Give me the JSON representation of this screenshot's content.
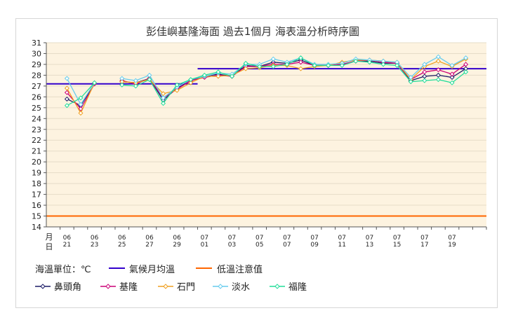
{
  "chart_data": {
    "type": "line",
    "title": "彭佳嶼基隆海面 過去1個月 海表溫分析時序圖",
    "xlabel": "月日",
    "ylabel": "",
    "ylim": [
      14,
      31
    ],
    "yticks": [
      14,
      15,
      16,
      17,
      18,
      19,
      20,
      21,
      22,
      23,
      24,
      25,
      26,
      27,
      28,
      29,
      30,
      31
    ],
    "grid": true,
    "plot_background": "#fdf3e0",
    "x_dates": [
      "06/20",
      "06/21",
      "06/22",
      "06/23",
      "06/24",
      "06/25",
      "06/26",
      "06/27",
      "06/28",
      "06/29",
      "06/30",
      "07/01",
      "07/02",
      "07/03",
      "07/04",
      "07/05",
      "07/06",
      "07/07",
      "07/08",
      "07/09",
      "07/10",
      "07/11",
      "07/12",
      "07/13",
      "07/14",
      "07/15",
      "07/16",
      "07/17",
      "07/18",
      "07/19",
      "07/20",
      "07/21"
    ],
    "x_tick_labels": [
      {
        "date": "06/21",
        "month": "06",
        "day": "21"
      },
      {
        "date": "06/23",
        "month": "06",
        "day": "23"
      },
      {
        "date": "06/25",
        "month": "06",
        "day": "25"
      },
      {
        "date": "06/27",
        "month": "06",
        "day": "27"
      },
      {
        "date": "06/29",
        "month": "06",
        "day": "29"
      },
      {
        "date": "07/01",
        "month": "07",
        "day": "01"
      },
      {
        "date": "07/03",
        "month": "07",
        "day": "03"
      },
      {
        "date": "07/05",
        "month": "07",
        "day": "05"
      },
      {
        "date": "07/07",
        "month": "07",
        "day": "07"
      },
      {
        "date": "07/09",
        "month": "07",
        "day": "09"
      },
      {
        "date": "07/11",
        "month": "07",
        "day": "11"
      },
      {
        "date": "07/13",
        "month": "07",
        "day": "13"
      },
      {
        "date": "07/15",
        "month": "07",
        "day": "15"
      },
      {
        "date": "07/17",
        "month": "07",
        "day": "17"
      },
      {
        "date": "07/19",
        "month": "07",
        "day": "19"
      }
    ],
    "x_axis_caption_top": "月",
    "x_axis_caption_bottom": "日",
    "unit_label": "海溫單位：℃",
    "reference_lines": [
      {
        "name": "氣候月均溫",
        "color": "#3300cc",
        "segments": [
          {
            "x_start": "06/20",
            "x_end": "06/30",
            "y": 27.2
          },
          {
            "x_start": "07/01",
            "x_end": "07/21",
            "y": 28.6
          }
        ]
      },
      {
        "name": "低溫注意值",
        "color": "#ff6600",
        "y": 15.0
      }
    ],
    "series": [
      {
        "name": "鼻頭角",
        "color": "#1a1a66",
        "points": [
          [
            "06/21",
            25.8
          ],
          [
            "06/22",
            25.2
          ],
          [
            "06/23",
            27.2
          ],
          [
            "06/25",
            27.4
          ],
          [
            "06/26",
            27.3
          ],
          [
            "06/27",
            27.7
          ],
          [
            "06/28",
            25.7
          ],
          [
            "06/29",
            26.8
          ],
          [
            "06/30",
            27.5
          ],
          [
            "07/01",
            27.9
          ],
          [
            "07/02",
            28.1
          ],
          [
            "07/03",
            27.9
          ],
          [
            "07/04",
            28.9
          ],
          [
            "07/05",
            28.8
          ],
          [
            "07/06",
            29.2
          ],
          [
            "07/07",
            29.1
          ],
          [
            "07/08",
            29.4
          ],
          [
            "07/09",
            28.9
          ],
          [
            "07/10",
            28.9
          ],
          [
            "07/11",
            29.0
          ],
          [
            "07/12",
            29.3
          ],
          [
            "07/13",
            29.3
          ],
          [
            "07/14",
            29.1
          ],
          [
            "07/15",
            29.1
          ],
          [
            "07/16",
            27.5
          ],
          [
            "07/17",
            27.9
          ],
          [
            "07/18",
            28.0
          ],
          [
            "07/19",
            27.8
          ],
          [
            "07/20",
            28.6
          ]
        ]
      },
      {
        "name": "基隆",
        "color": "#cc0077",
        "points": [
          [
            "06/21",
            26.4
          ],
          [
            "06/22",
            24.9
          ],
          [
            "06/23",
            27.2
          ],
          [
            "06/25",
            27.5
          ],
          [
            "06/26",
            27.2
          ],
          [
            "06/27",
            27.7
          ],
          [
            "06/28",
            25.9
          ],
          [
            "06/29",
            26.7
          ],
          [
            "06/30",
            27.5
          ],
          [
            "07/01",
            27.8
          ],
          [
            "07/02",
            28.0
          ],
          [
            "07/03",
            27.9
          ],
          [
            "07/04",
            28.8
          ],
          [
            "07/05",
            28.8
          ],
          [
            "07/06",
            29.0
          ],
          [
            "07/07",
            29.0
          ],
          [
            "07/08",
            29.2
          ],
          [
            "07/09",
            28.9
          ],
          [
            "07/10",
            28.9
          ],
          [
            "07/11",
            29.0
          ],
          [
            "07/12",
            29.3
          ],
          [
            "07/13",
            29.4
          ],
          [
            "07/14",
            29.2
          ],
          [
            "07/15",
            29.1
          ],
          [
            "07/16",
            27.6
          ],
          [
            "07/17",
            28.3
          ],
          [
            "07/18",
            28.5
          ],
          [
            "07/19",
            28.1
          ],
          [
            "07/20",
            29.0
          ]
        ]
      },
      {
        "name": "石門",
        "color": "#f0a020",
        "points": [
          [
            "06/21",
            26.8
          ],
          [
            "06/22",
            24.5
          ],
          [
            "06/23",
            27.3
          ],
          [
            "06/25",
            27.4
          ],
          [
            "06/26",
            27.3
          ],
          [
            "06/27",
            27.6
          ],
          [
            "06/28",
            26.3
          ],
          [
            "06/29",
            26.6
          ],
          [
            "06/30",
            27.3
          ],
          [
            "07/01",
            27.9
          ],
          [
            "07/02",
            27.9
          ],
          [
            "07/03",
            28.0
          ],
          [
            "07/04",
            28.6
          ],
          [
            "07/05",
            28.7
          ],
          [
            "07/06",
            28.9
          ],
          [
            "07/07",
            28.9
          ],
          [
            "07/08",
            28.6
          ],
          [
            "07/09",
            28.8
          ],
          [
            "07/10",
            28.9
          ],
          [
            "07/11",
            29.2
          ],
          [
            "07/12",
            29.4
          ],
          [
            "07/13",
            29.4
          ],
          [
            "07/14",
            29.3
          ],
          [
            "07/15",
            29.2
          ],
          [
            "07/16",
            27.6
          ],
          [
            "07/17",
            28.8
          ],
          [
            "07/18",
            29.3
          ],
          [
            "07/19",
            28.8
          ],
          [
            "07/20",
            29.5
          ]
        ]
      },
      {
        "name": "淡水",
        "color": "#66ccee",
        "points": [
          [
            "06/21",
            27.7
          ],
          [
            "06/22",
            25.3
          ],
          [
            "06/23",
            27.3
          ],
          [
            "06/25",
            27.7
          ],
          [
            "06/26",
            27.5
          ],
          [
            "06/27",
            28.0
          ],
          [
            "06/28",
            25.9
          ],
          [
            "06/29",
            26.9
          ],
          [
            "06/30",
            27.6
          ],
          [
            "07/01",
            27.9
          ],
          [
            "07/02",
            28.2
          ],
          [
            "07/03",
            28.1
          ],
          [
            "07/04",
            29.0
          ],
          [
            "07/05",
            29.0
          ],
          [
            "07/06",
            29.5
          ],
          [
            "07/07",
            29.2
          ],
          [
            "07/08",
            29.6
          ],
          [
            "07/09",
            29.0
          ],
          [
            "07/10",
            29.0
          ],
          [
            "07/11",
            29.1
          ],
          [
            "07/12",
            29.5
          ],
          [
            "07/13",
            29.4
          ],
          [
            "07/14",
            29.3
          ],
          [
            "07/15",
            29.2
          ],
          [
            "07/16",
            27.8
          ],
          [
            "07/17",
            29.0
          ],
          [
            "07/18",
            29.7
          ],
          [
            "07/19",
            28.9
          ],
          [
            "07/20",
            29.6
          ]
        ]
      },
      {
        "name": "福隆",
        "color": "#22dd99",
        "points": [
          [
            "06/21",
            25.2
          ],
          [
            "06/22",
            25.9
          ],
          [
            "06/23",
            27.3
          ],
          [
            "06/25",
            27.1
          ],
          [
            "06/26",
            27.0
          ],
          [
            "06/27",
            27.6
          ],
          [
            "06/28",
            25.4
          ],
          [
            "06/29",
            27.1
          ],
          [
            "06/30",
            27.6
          ],
          [
            "07/01",
            28.0
          ],
          [
            "07/02",
            28.3
          ],
          [
            "07/03",
            27.9
          ],
          [
            "07/04",
            29.1
          ],
          [
            "07/05",
            28.8
          ],
          [
            "07/06",
            28.8
          ],
          [
            "07/07",
            29.0
          ],
          [
            "07/08",
            29.6
          ],
          [
            "07/09",
            28.9
          ],
          [
            "07/10",
            28.9
          ],
          [
            "07/11",
            28.9
          ],
          [
            "07/12",
            29.3
          ],
          [
            "07/13",
            29.2
          ],
          [
            "07/14",
            29.0
          ],
          [
            "07/15",
            28.9
          ],
          [
            "07/16",
            27.4
          ],
          [
            "07/17",
            27.5
          ],
          [
            "07/18",
            27.6
          ],
          [
            "07/19",
            27.3
          ],
          [
            "07/20",
            28.3
          ]
        ]
      }
    ]
  }
}
